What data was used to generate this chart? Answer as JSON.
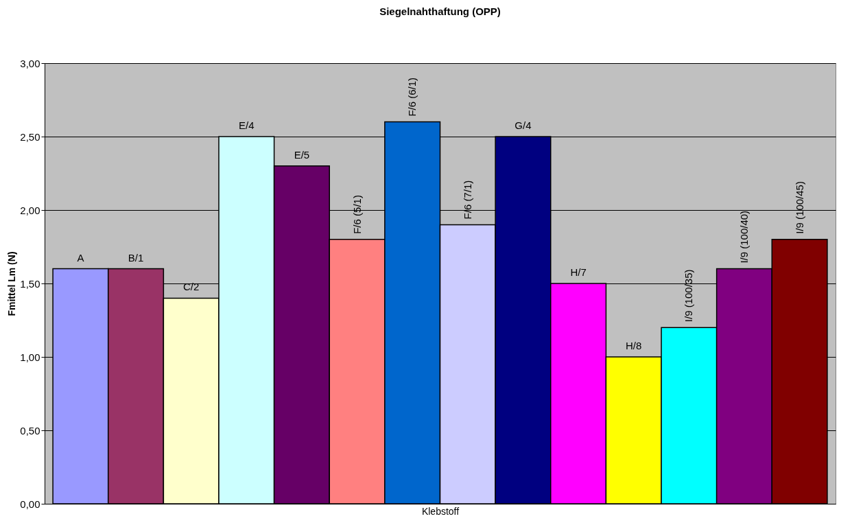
{
  "chart_data": {
    "type": "bar",
    "title": "Siegelnahthaftung (OPP)",
    "xlabel": "Klebstoff",
    "ylabel": "Fmittel Lm (N)",
    "categories": [
      "A",
      "B/1",
      "C/2",
      "E/4",
      "E/5",
      "F/6 (5/1)",
      "F/6 (6/1)",
      "F/6 (7/1)",
      "G/4",
      "H/7",
      "H/8",
      "I/9 (100/35)",
      "I/9 (100/40)",
      "I/9 (100/45)"
    ],
    "values": [
      1.6,
      1.6,
      1.4,
      2.5,
      2.3,
      1.8,
      2.6,
      1.9,
      2.5,
      1.5,
      1.0,
      1.2,
      1.6,
      1.8
    ],
    "colors": [
      "#9999ff",
      "#993366",
      "#ffffcc",
      "#ccffff",
      "#660066",
      "#ff8080",
      "#0066cc",
      "#ccccff",
      "#000080",
      "#ff00ff",
      "#ffff00",
      "#00ffff",
      "#800080",
      "#800000"
    ],
    "ylim": [
      0,
      3
    ],
    "yticks": [
      {
        "value": 0,
        "label": "0,00"
      },
      {
        "value": 0.5,
        "label": "0,50"
      },
      {
        "value": 1,
        "label": "1,00"
      },
      {
        "value": 1.5,
        "label": "1,50"
      },
      {
        "value": 2,
        "label": "2,00"
      },
      {
        "value": 2.5,
        "label": "2,50"
      },
      {
        "value": 3,
        "label": "3,00"
      }
    ],
    "grid": "y",
    "tick_labels": "y",
    "legend": false
  }
}
